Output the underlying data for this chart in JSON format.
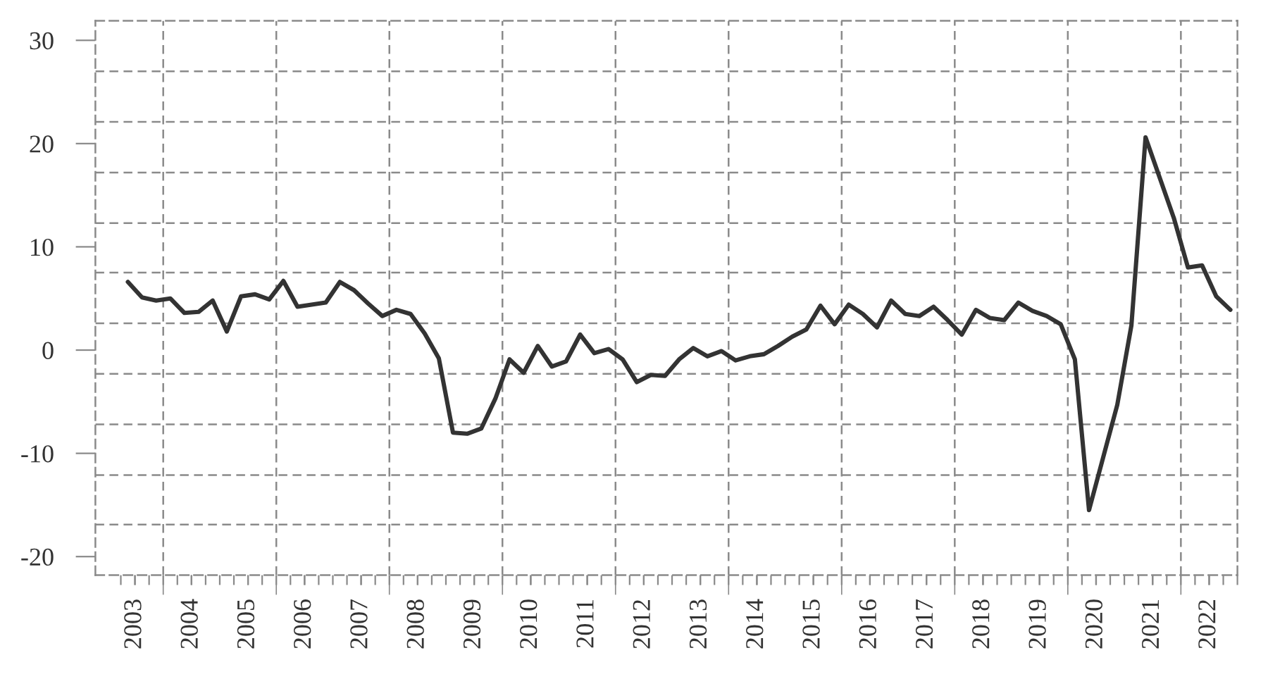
{
  "chart_data": {
    "type": "line",
    "x": [
      2003.375,
      2003.625,
      2003.875,
      2004.125,
      2004.375,
      2004.625,
      2004.875,
      2005.125,
      2005.375,
      2005.625,
      2005.875,
      2006.125,
      2006.375,
      2006.625,
      2006.875,
      2007.125,
      2007.375,
      2007.625,
      2007.875,
      2008.125,
      2008.375,
      2008.625,
      2008.875,
      2009.125,
      2009.375,
      2009.625,
      2009.875,
      2010.125,
      2010.375,
      2010.625,
      2010.875,
      2011.125,
      2011.375,
      2011.625,
      2011.875,
      2012.125,
      2012.375,
      2012.625,
      2012.875,
      2013.125,
      2013.375,
      2013.625,
      2013.875,
      2014.125,
      2014.375,
      2014.625,
      2014.875,
      2015.125,
      2015.375,
      2015.625,
      2015.875,
      2016.125,
      2016.375,
      2016.625,
      2016.875,
      2017.125,
      2017.375,
      2017.625,
      2017.875,
      2018.125,
      2018.375,
      2018.625,
      2018.875,
      2019.125,
      2019.375,
      2019.625,
      2019.875,
      2020.125,
      2020.375,
      2020.625,
      2020.875,
      2021.125,
      2021.375,
      2021.625,
      2021.875,
      2022.125,
      2022.375,
      2022.625,
      2022.875
    ],
    "values": [
      6.6,
      5.1,
      4.8,
      5.0,
      3.6,
      3.7,
      4.8,
      1.8,
      5.2,
      5.4,
      4.9,
      6.7,
      4.2,
      4.4,
      4.6,
      6.6,
      5.8,
      4.5,
      3.3,
      3.9,
      3.5,
      1.6,
      -0.8,
      -8.0,
      -8.1,
      -7.6,
      -4.7,
      -0.9,
      -2.2,
      0.4,
      -1.6,
      -1.1,
      1.5,
      -0.3,
      0.1,
      -0.9,
      -3.1,
      -2.4,
      -2.5,
      -0.9,
      0.2,
      -0.6,
      -0.1,
      -1.0,
      -0.6,
      -0.4,
      0.4,
      1.3,
      2.0,
      4.3,
      2.5,
      4.4,
      3.5,
      2.2,
      4.8,
      3.5,
      3.3,
      4.2,
      2.9,
      1.5,
      3.9,
      3.1,
      2.9,
      4.6,
      3.8,
      3.3,
      2.5,
      -0.9,
      -15.5,
      -10.4,
      -5.3,
      2.4,
      20.6,
      16.7,
      12.8,
      8.0,
      8.2,
      5.2,
      3.9
    ],
    "color": "#333333",
    "xlim": [
      2002.8,
      2023.0
    ],
    "xticks": [
      {
        "value": 2003.5,
        "label": "2003"
      },
      {
        "value": 2004,
        "label": null
      },
      {
        "value": 2004.5,
        "label": "2004"
      },
      {
        "value": 2005.5,
        "label": "2005"
      },
      {
        "value": 2006,
        "label": null
      },
      {
        "value": 2006.5,
        "label": "2006"
      },
      {
        "value": 2007.5,
        "label": "2007"
      },
      {
        "value": 2008,
        "label": null
      },
      {
        "value": 2008.5,
        "label": "2008"
      },
      {
        "value": 2009.5,
        "label": "2009"
      },
      {
        "value": 2010,
        "label": null
      },
      {
        "value": 2010.5,
        "label": "2010"
      },
      {
        "value": 2011.5,
        "label": "2011"
      },
      {
        "value": 2012,
        "label": null
      },
      {
        "value": 2012.5,
        "label": "2012"
      },
      {
        "value": 2013.5,
        "label": "2013"
      },
      {
        "value": 2014,
        "label": null
      },
      {
        "value": 2014.5,
        "label": "2014"
      },
      {
        "value": 2015.5,
        "label": "2015"
      },
      {
        "value": 2016,
        "label": null
      },
      {
        "value": 2016.5,
        "label": "2016"
      },
      {
        "value": 2017.5,
        "label": "2017"
      },
      {
        "value": 2018,
        "label": null
      },
      {
        "value": 2018.5,
        "label": "2018"
      },
      {
        "value": 2019.5,
        "label": "2019"
      },
      {
        "value": 2020,
        "label": null
      },
      {
        "value": 2020.5,
        "label": "2020"
      },
      {
        "value": 2021.5,
        "label": "2021"
      },
      {
        "value": 2022,
        "label": null
      },
      {
        "value": 2022.5,
        "label": "2022"
      }
    ],
    "ylim": [
      -21.8,
      31.9
    ],
    "yticks": [
      -20,
      {
        "value": -16.9,
        "label": null
      },
      {
        "value": -12.1,
        "label": null
      },
      -10,
      {
        "value": -7.2,
        "label": null
      },
      {
        "value": -2.3,
        "label": null
      },
      0,
      {
        "value": 2.6,
        "label": null
      },
      {
        "value": 7.5,
        "label": null
      },
      10,
      {
        "value": 12.3,
        "label": null
      },
      {
        "value": 17.2,
        "label": null
      },
      20,
      {
        "value": 22.1,
        "label": null
      },
      {
        "value": 27.0,
        "label": null
      },
      30
    ],
    "grid": true
  }
}
